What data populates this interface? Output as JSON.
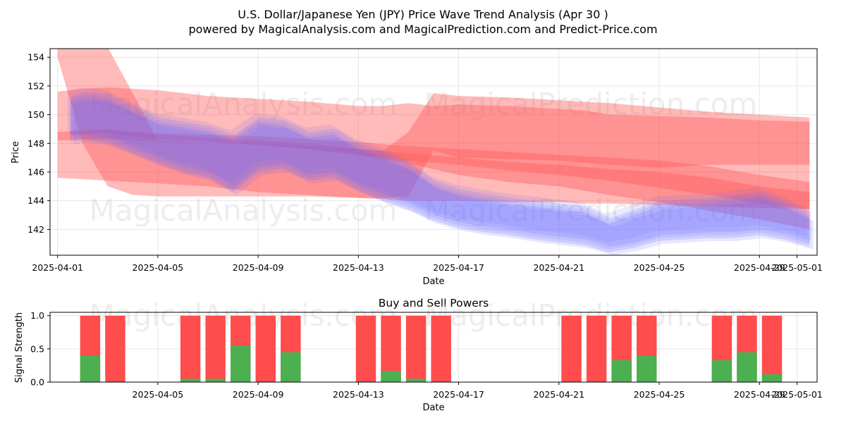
{
  "title": "U.S. Dollar/Japanese Yen (JPY) Price Wave Trend Analysis (Apr 30 )",
  "subtitle": "powered by MagicalAnalysis.com and MagicalPrediction.com and Predict-Price.com",
  "watermarks": [
    "MagicalAnalysis.com",
    "MagicalPrediction.com"
  ],
  "colors": {
    "buy": "#4caf50",
    "sell": "#ff4c4c",
    "red_band": "#ff5a5a",
    "blue_band": "#6a6aff",
    "grid": "#e6e6e6"
  },
  "chart_data": [
    {
      "type": "line",
      "name": "price-wave",
      "xlabel": "Date",
      "ylabel": "Price",
      "xlim": [
        -0.3,
        30.3
      ],
      "ylim": [
        140.2,
        154.6
      ],
      "x_ticks": [
        {
          "day": 0,
          "label": "2025-04-01"
        },
        {
          "day": 4,
          "label": "2025-04-05"
        },
        {
          "day": 8,
          "label": "2025-04-09"
        },
        {
          "day": 12,
          "label": "2025-04-13"
        },
        {
          "day": 16,
          "label": "2025-04-17"
        },
        {
          "day": 20,
          "label": "2025-04-21"
        },
        {
          "day": 24,
          "label": "2025-04-25"
        },
        {
          "day": 28,
          "label": "2025-04-29"
        },
        {
          "day": 29.5,
          "label": "2025-05-01"
        }
      ],
      "y_ticks": [
        142,
        144,
        146,
        148,
        150,
        152,
        154
      ],
      "grid": true,
      "series": [
        {
          "name": "red-wave-upper",
          "color": "red",
          "days": [
            0,
            1,
            2,
            4,
            6,
            7,
            8,
            10,
            12,
            13,
            14,
            15,
            16,
            18,
            20,
            21,
            22,
            24,
            26,
            28,
            30
          ],
          "upper": [
            151.6,
            151.8,
            151.9,
            151.7,
            151.3,
            151.2,
            151.1,
            150.9,
            150.6,
            150.6,
            150.8,
            150.6,
            150.7,
            150.6,
            150.4,
            150.3,
            150.0,
            149.9,
            149.8,
            149.6,
            149.5
          ],
          "lower": [
            145.6,
            145.5,
            145.4,
            145.2,
            145.0,
            144.8,
            144.6,
            144.4,
            144.2,
            144.1,
            144.0,
            144.0,
            144.0,
            143.9,
            143.9,
            143.8,
            143.8,
            143.7,
            143.6,
            143.5,
            143.4
          ]
        },
        {
          "name": "red-wave-step",
          "color": "red",
          "days": [
            0,
            1,
            2,
            3,
            4,
            6,
            8,
            10,
            12,
            13,
            14,
            15,
            16,
            18,
            20,
            22,
            24,
            26,
            28,
            30
          ],
          "upper": [
            154.8,
            154.8,
            154.7,
            151.5,
            148.2,
            148.0,
            148.0,
            147.8,
            147.6,
            147.5,
            148.8,
            151.5,
            151.3,
            151.2,
            151.0,
            150.8,
            150.5,
            150.2,
            150.0,
            149.8
          ],
          "lower": [
            154.0,
            148.0,
            145.0,
            144.4,
            144.3,
            144.3,
            144.3,
            144.3,
            144.2,
            144.2,
            144.3,
            147.5,
            147.0,
            146.9,
            146.8,
            146.5,
            146.3,
            146.5,
            146.5,
            146.5
          ]
        },
        {
          "name": "red-wave-trend",
          "color": "red",
          "days": [
            0,
            2,
            4,
            6,
            8,
            10,
            12,
            14,
            16,
            18,
            20,
            22,
            24,
            26,
            28,
            30
          ],
          "upper": [
            148.8,
            148.9,
            148.7,
            148.6,
            148.5,
            148.3,
            148.1,
            147.8,
            147.6,
            147.4,
            147.2,
            147.0,
            146.8,
            146.4,
            145.8,
            145.3
          ],
          "lower": [
            148.2,
            148.3,
            148.1,
            148.0,
            147.9,
            147.6,
            147.2,
            146.6,
            145.8,
            145.3,
            145.0,
            144.4,
            143.9,
            143.3,
            142.7,
            142.0
          ]
        },
        {
          "name": "red-wave-mid",
          "color": "red",
          "days": [
            0.5,
            2,
            4,
            6,
            8,
            10,
            12,
            14,
            16,
            18,
            20,
            22,
            24,
            26,
            28,
            30
          ],
          "upper": [
            148.9,
            149.0,
            148.6,
            148.4,
            148.2,
            148.0,
            147.6,
            147.3,
            147.0,
            146.7,
            146.5,
            146.2,
            146.0,
            145.6,
            145.0,
            144.6
          ],
          "lower": [
            148.6,
            148.7,
            148.3,
            148.1,
            147.9,
            147.6,
            147.2,
            146.8,
            146.5,
            146.1,
            145.8,
            145.4,
            144.9,
            144.4,
            143.8,
            143.4
          ]
        },
        {
          "name": "blue-wave",
          "color": "blue",
          "days": [
            0.5,
            1,
            2,
            3,
            4,
            5,
            6,
            7,
            8,
            9,
            10,
            11,
            12,
            13,
            14,
            15,
            16,
            17,
            18,
            19,
            20,
            21,
            22,
            23,
            24,
            25,
            26,
            27,
            28,
            29,
            30
          ],
          "upper": [
            151.1,
            151.4,
            151.2,
            150.4,
            149.6,
            149.3,
            149.0,
            148.4,
            149.6,
            149.4,
            148.6,
            148.8,
            147.8,
            147.2,
            146.4,
            145.2,
            144.6,
            144.3,
            144.0,
            143.8,
            143.6,
            143.4,
            142.6,
            143.2,
            143.8,
            143.9,
            144.0,
            144.2,
            144.4,
            143.8,
            143.0
          ],
          "lower": [
            148.3,
            148.5,
            148.2,
            147.5,
            146.8,
            146.2,
            145.8,
            144.8,
            146.2,
            146.4,
            145.6,
            145.8,
            144.9,
            144.2,
            143.6,
            142.8,
            142.3,
            142.0,
            141.8,
            141.5,
            141.3,
            141.1,
            140.6,
            140.9,
            141.4,
            141.5,
            141.6,
            141.6,
            141.8,
            141.5,
            141.0
          ]
        }
      ]
    },
    {
      "type": "bar",
      "name": "buy-sell-powers",
      "title": "Buy and Sell Powers",
      "xlabel": "Date",
      "ylabel": "Signal Strength",
      "xlim": [
        -0.3,
        30.3
      ],
      "ylim": [
        0,
        1.05
      ],
      "y_ticks": [
        0.0,
        0.5,
        1.0
      ],
      "x_ticks": [
        {
          "day": 4,
          "label": "2025-04-05"
        },
        {
          "day": 8,
          "label": "2025-04-09"
        },
        {
          "day": 12,
          "label": "2025-04-13"
        },
        {
          "day": 16,
          "label": "2025-04-17"
        },
        {
          "day": 20,
          "label": "2025-04-21"
        },
        {
          "day": 24,
          "label": "2025-04-25"
        },
        {
          "day": 28,
          "label": "2025-04-29"
        },
        {
          "day": 29.5,
          "label": "2025-05-01"
        }
      ],
      "grid": true,
      "bars": [
        {
          "day": 1.3,
          "buy": 0.4,
          "total": 1.0
        },
        {
          "day": 2.3,
          "buy": 0.0,
          "total": 1.0
        },
        {
          "day": 5.3,
          "buy": 0.05,
          "total": 1.0
        },
        {
          "day": 6.3,
          "buy": 0.05,
          "total": 1.0
        },
        {
          "day": 7.3,
          "buy": 0.55,
          "total": 1.0
        },
        {
          "day": 8.3,
          "buy": 0.0,
          "total": 1.0
        },
        {
          "day": 9.3,
          "buy": 0.45,
          "total": 1.0
        },
        {
          "day": 12.3,
          "buy": 0.0,
          "total": 1.0
        },
        {
          "day": 13.3,
          "buy": 0.17,
          "total": 1.0
        },
        {
          "day": 14.3,
          "buy": 0.05,
          "total": 1.0
        },
        {
          "day": 15.3,
          "buy": 0.0,
          "total": 1.0
        },
        {
          "day": 20.5,
          "buy": 0.0,
          "total": 1.0
        },
        {
          "day": 21.5,
          "buy": 0.0,
          "total": 1.0
        },
        {
          "day": 22.5,
          "buy": 0.33,
          "total": 1.0
        },
        {
          "day": 23.5,
          "buy": 0.4,
          "total": 1.0
        },
        {
          "day": 26.5,
          "buy": 0.33,
          "total": 1.0
        },
        {
          "day": 27.5,
          "buy": 0.45,
          "total": 1.0
        },
        {
          "day": 28.5,
          "buy": 0.12,
          "total": 1.0
        }
      ]
    }
  ]
}
